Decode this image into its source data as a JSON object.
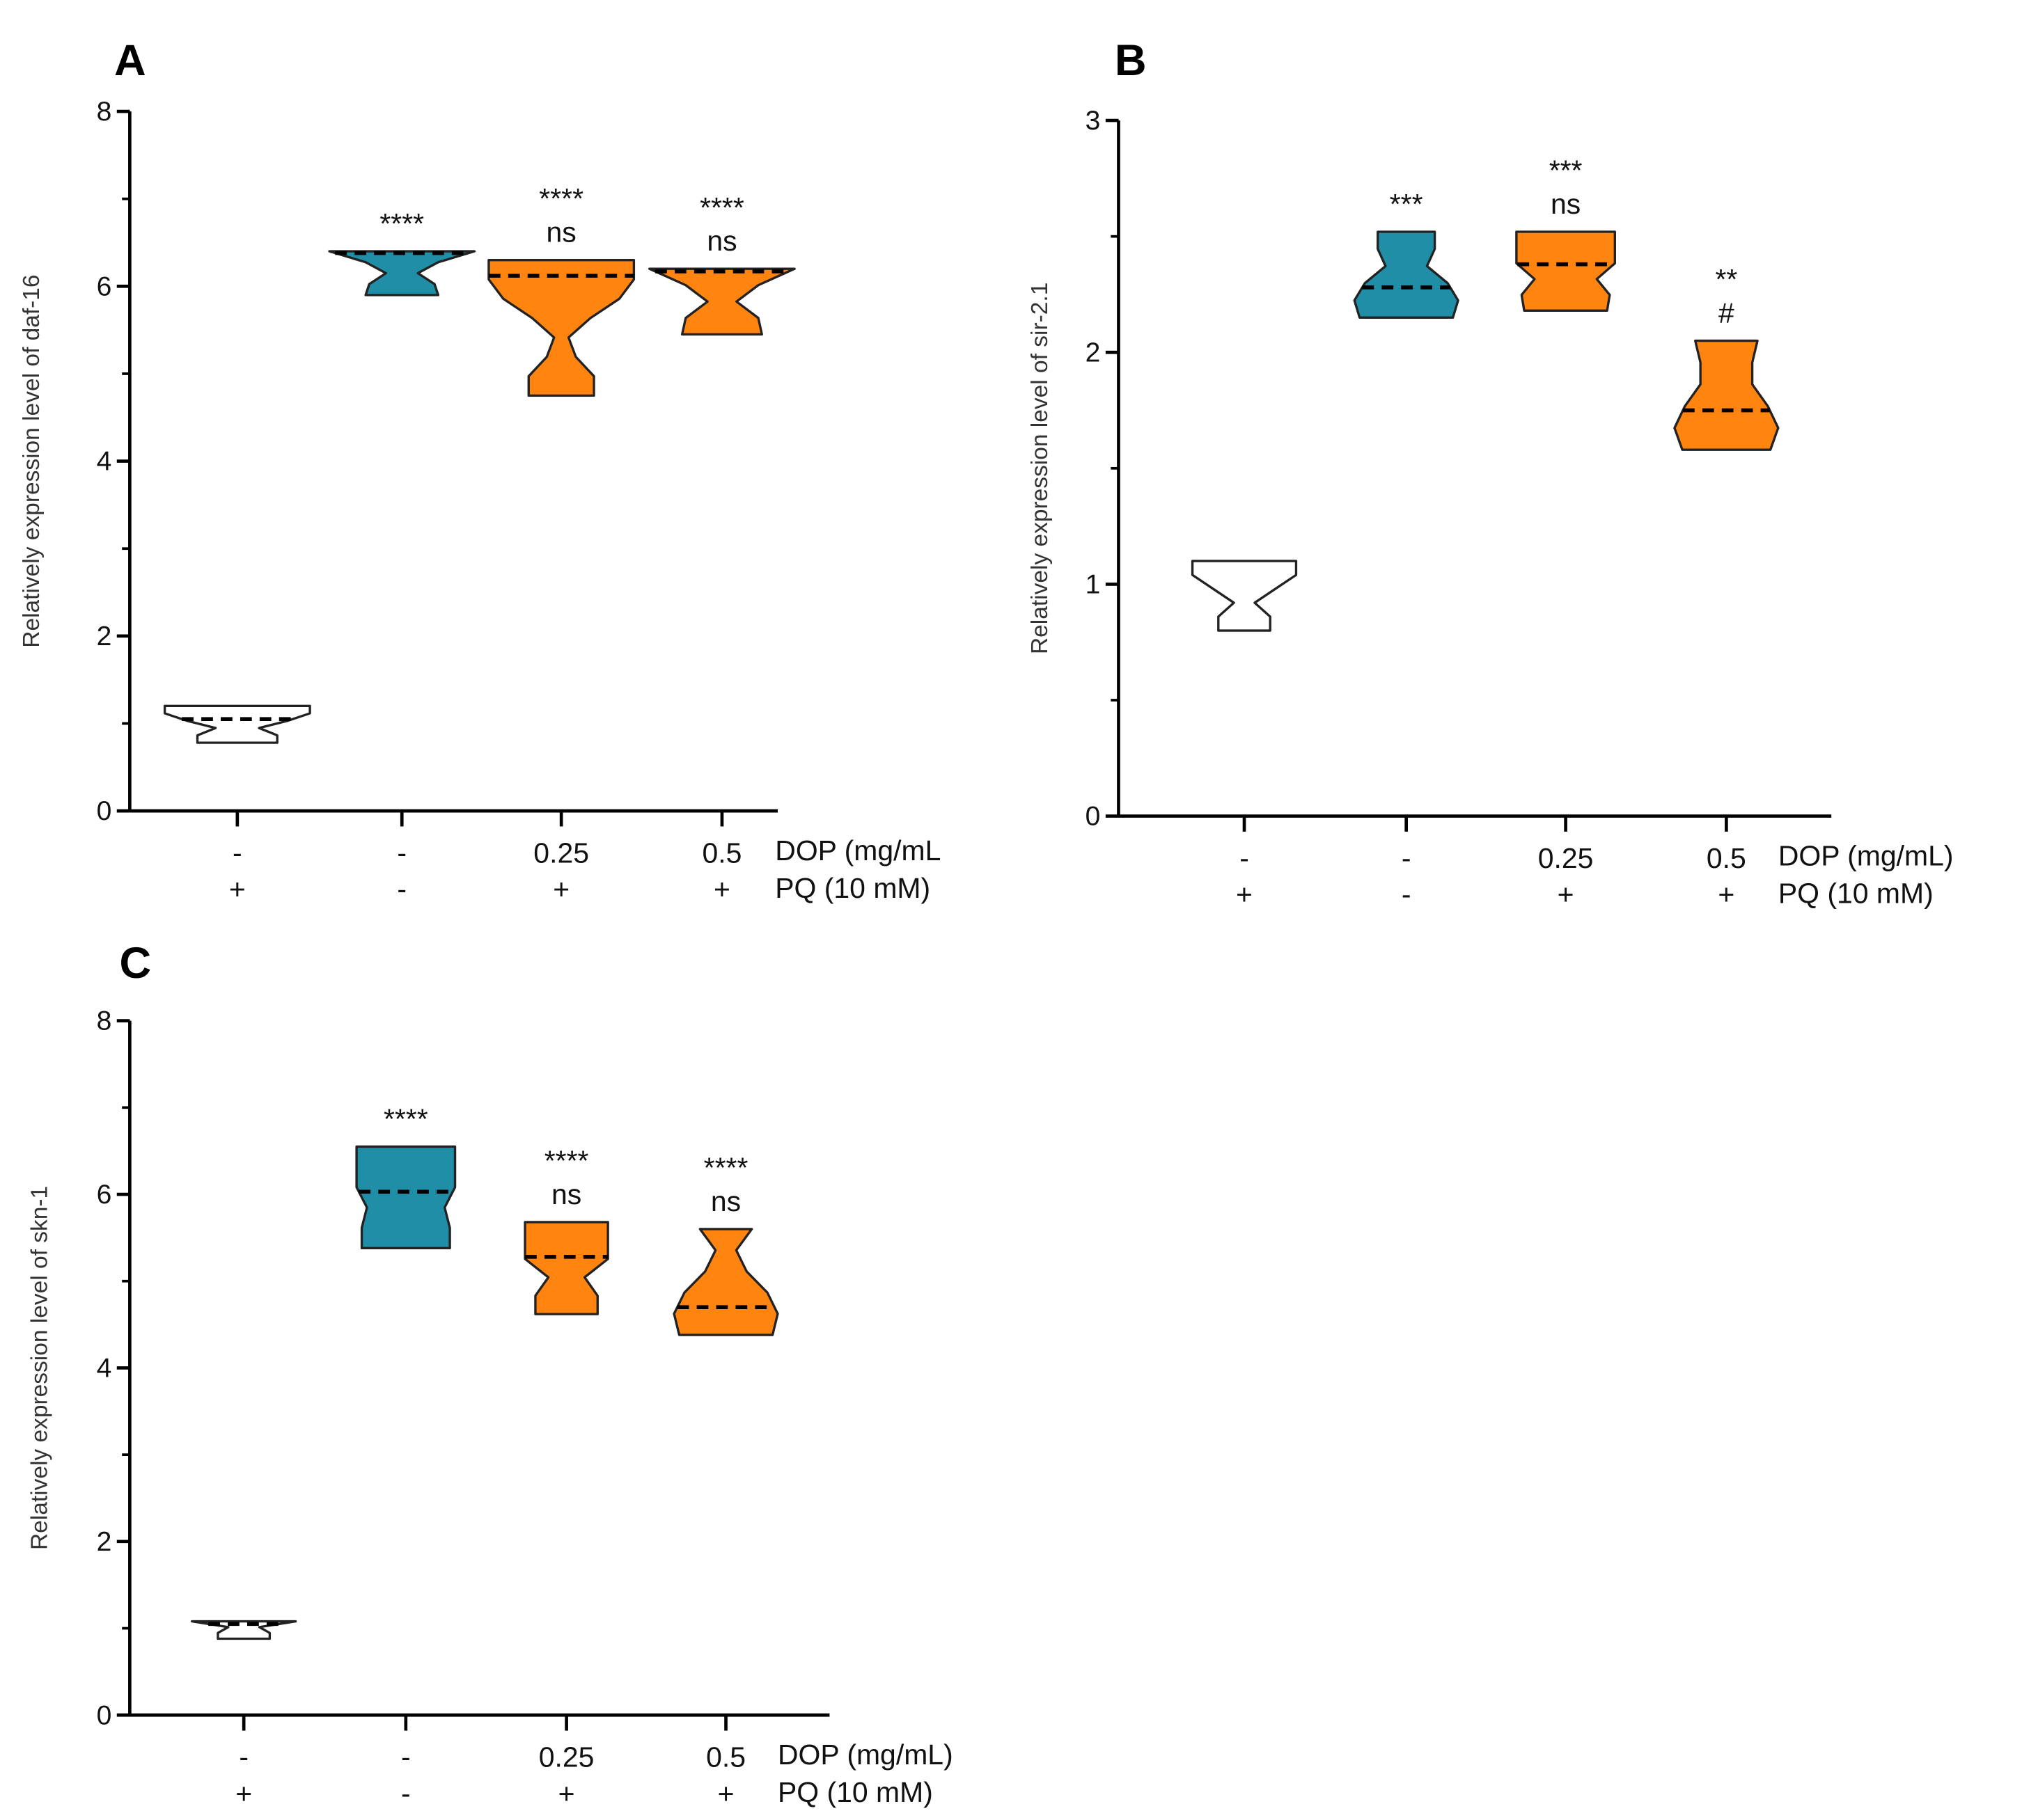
{
  "colors": {
    "control": "#ffffff",
    "pq": "#1f8ea6",
    "dop": "#ff8410",
    "outline": "#222222"
  },
  "chart_data": [
    {
      "type": "violin",
      "panel": "A",
      "ylabel": "Relatively expression level of daf-16",
      "ylim": [
        0,
        8
      ],
      "yticks": [
        "0",
        "2",
        "4",
        "6",
        "8"
      ],
      "ytick_values": [
        0,
        2,
        4,
        6,
        8
      ],
      "minor_step": 1,
      "row_labels": [
        "DOP (mg/mL",
        "PQ (10 mM)"
      ],
      "dop": [
        "-",
        "-",
        "0.25",
        "0.5"
      ],
      "pq": [
        "+",
        "-",
        "+",
        "+"
      ],
      "groups": [
        {
          "color": "control",
          "min": 0.78,
          "max": 1.2,
          "median": 1.05,
          "density": [
            0.55,
            0.55,
            0.3,
            0.7,
            1,
            1
          ],
          "annotations": []
        },
        {
          "color": "pq",
          "min": 5.9,
          "max": 6.4,
          "median": 6.38,
          "density": [
            0.5,
            0.45,
            0.22,
            0.5,
            1
          ],
          "annotations": [
            "****"
          ]
        },
        {
          "color": "dop",
          "min": 4.75,
          "max": 6.3,
          "median": 6.12,
          "density": [
            0.45,
            0.45,
            0.2,
            0.1,
            0.4,
            0.8,
            1,
            1
          ],
          "annotations": [
            "****",
            "ns"
          ]
        },
        {
          "color": "dop",
          "min": 5.45,
          "max": 6.2,
          "median": 6.17,
          "density": [
            0.55,
            0.5,
            0.2,
            0.5,
            1
          ],
          "annotations": [
            "****",
            "ns"
          ]
        }
      ]
    },
    {
      "type": "violin",
      "panel": "B",
      "ylabel": "Relatively expression level of sir-2.1",
      "ylim": [
        0,
        3
      ],
      "yticks": [
        "0",
        "1",
        "2",
        "3"
      ],
      "ytick_values": [
        0,
        1,
        2,
        3
      ],
      "minor_step": 0.5,
      "row_labels": [
        "DOP (mg/mL)",
        "PQ (10 mM)"
      ],
      "dop": [
        "-",
        "-",
        "0.25",
        "0.5"
      ],
      "pq": [
        "+",
        "-",
        "+",
        "+"
      ],
      "groups": [
        {
          "color": "control",
          "min": 0.8,
          "max": 1.1,
          "median": null,
          "density": [
            0.5,
            0.5,
            0.2,
            0.6,
            1,
            1
          ],
          "annotations": []
        },
        {
          "color": "pq",
          "min": 2.15,
          "max": 2.52,
          "median": 2.28,
          "density": [
            0.9,
            1,
            0.8,
            0.4,
            0.55,
            0.55
          ],
          "annotations": [
            "***"
          ]
        },
        {
          "color": "dop",
          "min": 2.18,
          "max": 2.52,
          "median": 2.38,
          "density": [
            0.8,
            0.85,
            0.6,
            0.95,
            0.95,
            0.95
          ],
          "annotations": [
            "***",
            "ns"
          ]
        },
        {
          "color": "dop",
          "min": 1.58,
          "max": 2.05,
          "median": 1.75,
          "density": [
            0.85,
            1,
            0.8,
            0.5,
            0.5,
            0.6
          ],
          "annotations": [
            "**",
            "#"
          ]
        }
      ]
    },
    {
      "type": "violin",
      "panel": "C",
      "ylabel": "Relatively expression level of skn-1",
      "ylim": [
        0,
        8
      ],
      "yticks": [
        "0",
        "2",
        "4",
        "6",
        "8"
      ],
      "ytick_values": [
        0,
        2,
        4,
        6,
        8
      ],
      "minor_step": 1,
      "row_labels": [
        "DOP (mg/mL)",
        "PQ (10 mM)"
      ],
      "dop": [
        "-",
        "-",
        "0.25",
        "0.5"
      ],
      "pq": [
        "+",
        "-",
        "+",
        "+"
      ],
      "groups": [
        {
          "color": "control",
          "min": 0.88,
          "max": 1.08,
          "median": 1.05,
          "density": [
            0.5,
            0.5,
            0.3,
            1
          ],
          "annotations": []
        },
        {
          "color": "pq",
          "min": 5.38,
          "max": 6.55,
          "median": 6.03,
          "density": [
            0.85,
            0.85,
            0.75,
            0.95,
            0.95,
            0.95
          ],
          "annotations": [
            "****"
          ]
        },
        {
          "color": "dop",
          "min": 4.62,
          "max": 5.68,
          "median": 5.28,
          "density": [
            0.6,
            0.6,
            0.35,
            0.8,
            0.8,
            0.8
          ],
          "annotations": [
            "****",
            "ns"
          ]
        },
        {
          "color": "dop",
          "min": 4.38,
          "max": 5.6,
          "median": 4.7,
          "density": [
            0.9,
            1,
            0.8,
            0.4,
            0.2,
            0.5
          ],
          "annotations": [
            "****",
            "ns"
          ]
        }
      ]
    }
  ]
}
